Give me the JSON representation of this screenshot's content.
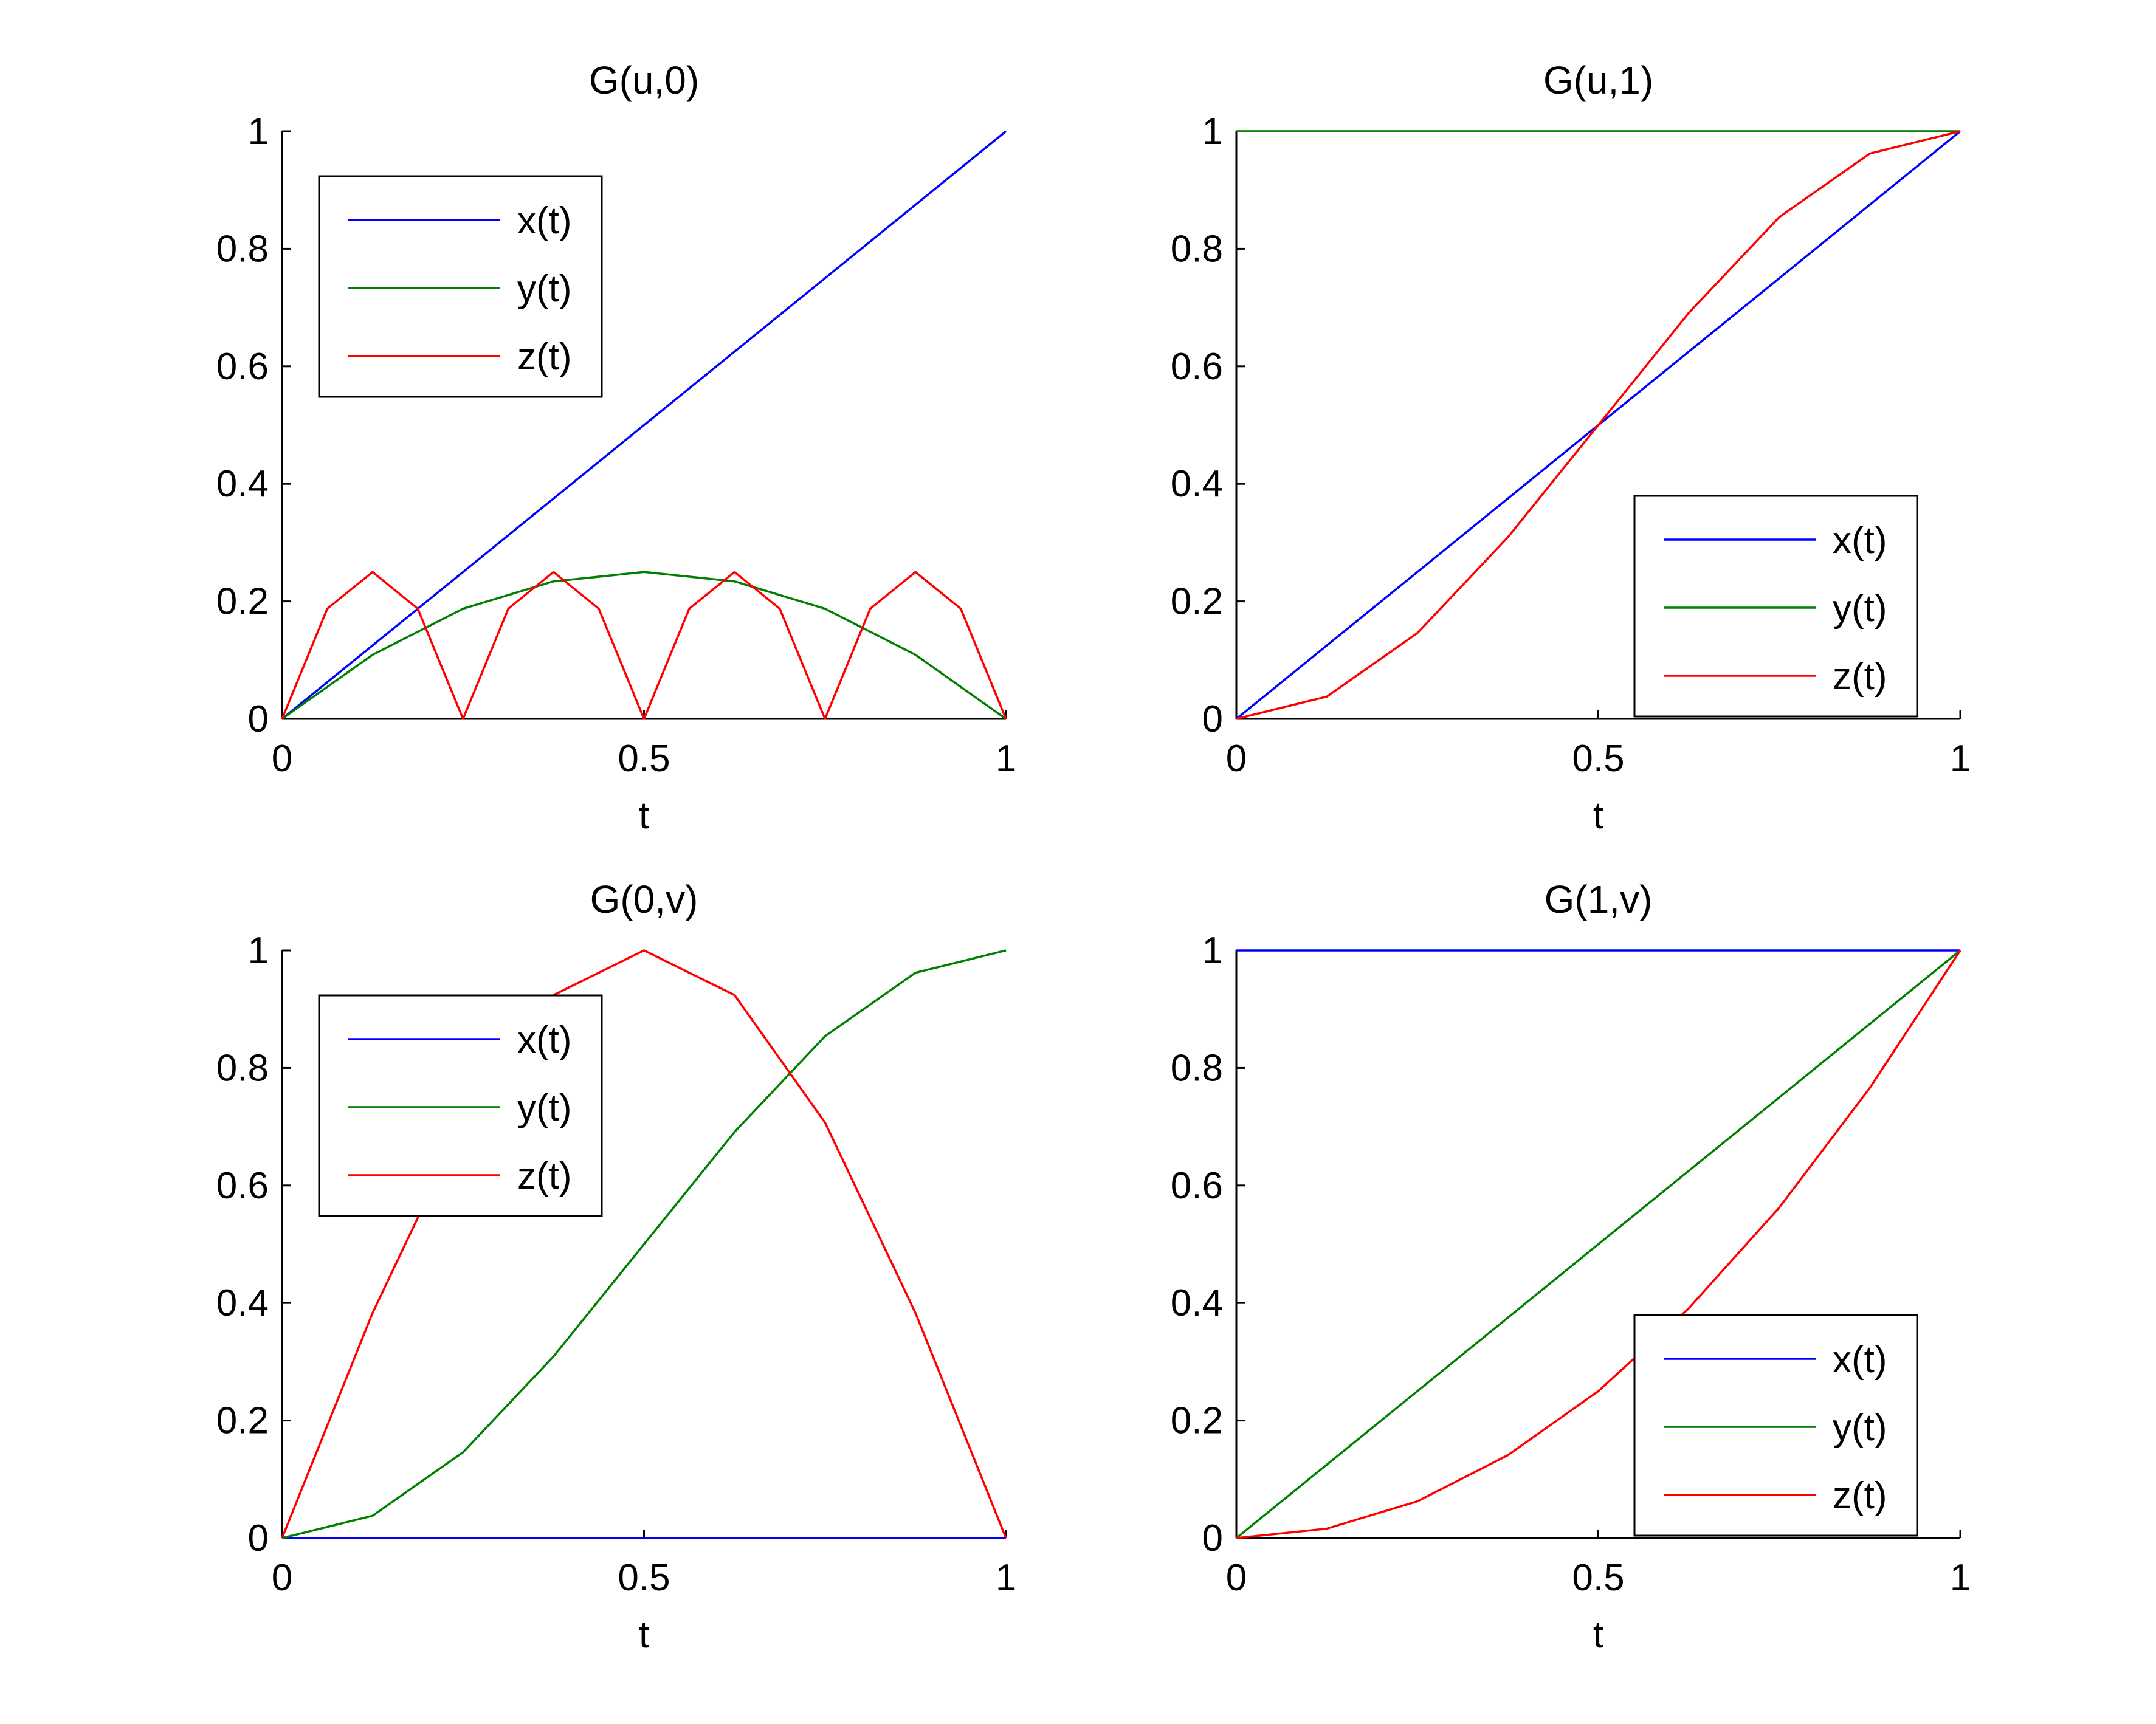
{
  "colors": {
    "x": "#0000ff",
    "y": "#007f00",
    "z": "#ff0000"
  },
  "chart_data": [
    {
      "type": "line",
      "title": "G(u,0)",
      "xlabel": "t",
      "ylabel": "",
      "xlim": [
        0,
        1
      ],
      "ylim": [
        0,
        1
      ],
      "xticks": [
        "0",
        "0.5",
        "1"
      ],
      "yticks": [
        "0",
        "0.2",
        "0.4",
        "0.6",
        "0.8",
        "1"
      ],
      "legend_position": "top-left",
      "series": [
        {
          "name": "x(t)",
          "x": [
            0,
            0.25,
            0.5,
            0.75,
            1
          ],
          "y": [
            0,
            0.25,
            0.5,
            0.75,
            1
          ]
        },
        {
          "name": "y(t)",
          "x": [
            0,
            0.125,
            0.25,
            0.375,
            0.5,
            0.625,
            0.75,
            0.875,
            1
          ],
          "y": [
            0,
            0.109,
            0.1875,
            0.234,
            0.25,
            0.234,
            0.1875,
            0.109,
            0
          ]
        },
        {
          "name": "z(t)",
          "x": [
            0,
            0.0625,
            0.125,
            0.1875,
            0.25,
            0.3125,
            0.375,
            0.4375,
            0.5,
            0.5625,
            0.625,
            0.6875,
            0.75,
            0.8125,
            0.875,
            0.9375,
            1
          ],
          "y": [
            0,
            0.1875,
            0.25,
            0.1875,
            0,
            0.1875,
            0.25,
            0.1875,
            0,
            0.1875,
            0.25,
            0.1875,
            0,
            0.1875,
            0.25,
            0.1875,
            0
          ]
        }
      ]
    },
    {
      "type": "line",
      "title": "G(u,1)",
      "xlabel": "t",
      "ylabel": "",
      "xlim": [
        0,
        1
      ],
      "ylim": [
        0,
        1
      ],
      "xticks": [
        "0",
        "0.5",
        "1"
      ],
      "yticks": [
        "0",
        "0.2",
        "0.4",
        "0.6",
        "0.8",
        "1"
      ],
      "legend_position": "bottom-right",
      "series": [
        {
          "name": "x(t)",
          "x": [
            0,
            0.25,
            0.5,
            0.75,
            1
          ],
          "y": [
            0,
            0.25,
            0.5,
            0.75,
            1
          ]
        },
        {
          "name": "y(t)",
          "x": [
            0,
            0.25,
            0.5,
            0.75,
            1
          ],
          "y": [
            1,
            1,
            1,
            1,
            1
          ]
        },
        {
          "name": "z(t)",
          "x": [
            0,
            0.125,
            0.25,
            0.375,
            0.5,
            0.625,
            0.75,
            0.875,
            1
          ],
          "y": [
            0,
            0.038,
            0.146,
            0.309,
            0.5,
            0.691,
            0.854,
            0.962,
            1
          ]
        }
      ]
    },
    {
      "type": "line",
      "title": "G(0,v)",
      "xlabel": "t",
      "ylabel": "",
      "xlim": [
        0,
        1
      ],
      "ylim": [
        0,
        1
      ],
      "xticks": [
        "0",
        "0.5",
        "1"
      ],
      "yticks": [
        "0",
        "0.2",
        "0.4",
        "0.6",
        "0.8",
        "1"
      ],
      "legend_position": "top-left",
      "series": [
        {
          "name": "x(t)",
          "x": [
            0,
            0.25,
            0.5,
            0.75,
            1
          ],
          "y": [
            0,
            0,
            0,
            0,
            0
          ]
        },
        {
          "name": "y(t)",
          "x": [
            0,
            0.125,
            0.25,
            0.375,
            0.5,
            0.625,
            0.75,
            0.875,
            1
          ],
          "y": [
            0,
            0.038,
            0.146,
            0.309,
            0.5,
            0.691,
            0.854,
            0.962,
            1
          ]
        },
        {
          "name": "z(t)",
          "x": [
            0,
            0.125,
            0.25,
            0.375,
            0.5,
            0.625,
            0.75,
            0.875,
            1
          ],
          "y": [
            0,
            0.383,
            0.707,
            0.924,
            1,
            0.924,
            0.707,
            0.383,
            0
          ]
        }
      ]
    },
    {
      "type": "line",
      "title": "G(1,v)",
      "xlabel": "t",
      "ylabel": "",
      "xlim": [
        0,
        1
      ],
      "ylim": [
        0,
        1
      ],
      "xticks": [
        "0",
        "0.5",
        "1"
      ],
      "yticks": [
        "0",
        "0.2",
        "0.4",
        "0.6",
        "0.8",
        "1"
      ],
      "legend_position": "bottom-right",
      "series": [
        {
          "name": "x(t)",
          "x": [
            0,
            0.25,
            0.5,
            0.75,
            1
          ],
          "y": [
            1,
            1,
            1,
            1,
            1
          ]
        },
        {
          "name": "y(t)",
          "x": [
            0,
            0.25,
            0.5,
            0.75,
            1
          ],
          "y": [
            0,
            0.25,
            0.5,
            0.75,
            1
          ]
        },
        {
          "name": "z(t)",
          "x": [
            0,
            0.125,
            0.25,
            0.375,
            0.5,
            0.625,
            0.75,
            0.875,
            1
          ],
          "y": [
            0,
            0.016,
            0.0625,
            0.141,
            0.25,
            0.391,
            0.5625,
            0.766,
            1
          ]
        }
      ]
    }
  ]
}
